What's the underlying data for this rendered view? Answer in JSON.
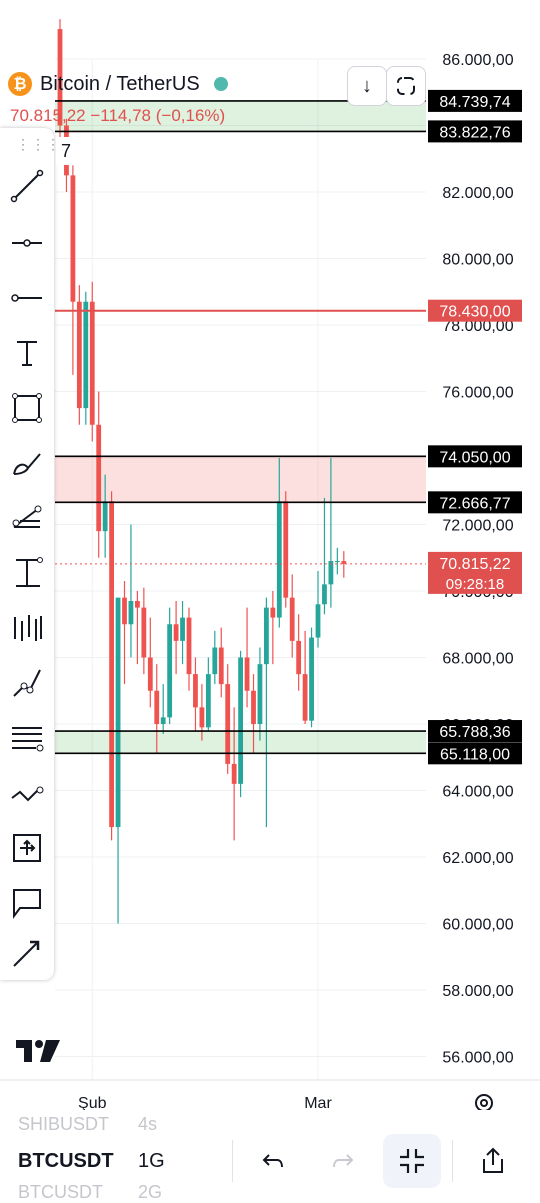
{
  "header": {
    "symbol_name": "Bitcoin / TetherUS",
    "price_line": "70.815,22  −114,78 (−0,16%)",
    "tool_count": "7"
  },
  "colors": {
    "up": "#26a69a",
    "down": "#ef5350",
    "label_dark": "#000000",
    "label_red": "#e0504f"
  },
  "chart_data": {
    "type": "candlestick",
    "ylim": [
      55000,
      87000
    ],
    "y_ticks": [
      {
        "value": 86000,
        "label": "86.000,00"
      },
      {
        "value": 84000,
        "label": "84.000,00"
      },
      {
        "value": 82000,
        "label": "82.000,00"
      },
      {
        "value": 80000,
        "label": "80.000,00"
      },
      {
        "value": 78000,
        "label": "78.000,00"
      },
      {
        "value": 76000,
        "label": "76.000,00"
      },
      {
        "value": 74000,
        "label": "74.000,00"
      },
      {
        "value": 72000,
        "label": "72.000,00"
      },
      {
        "value": 70000,
        "label": "70.000,00"
      },
      {
        "value": 68000,
        "label": "68.000,00"
      },
      {
        "value": 66000,
        "label": "66.000,00"
      },
      {
        "value": 64000,
        "label": "64.000,00"
      },
      {
        "value": 62000,
        "label": "62.000,00"
      },
      {
        "value": 60000,
        "label": "60.000,00"
      },
      {
        "value": 58000,
        "label": "58.000,00"
      },
      {
        "value": 56000,
        "label": "56.000,00"
      }
    ],
    "x_labels": [
      {
        "index": 5,
        "label": "Şub"
      },
      {
        "index": 40,
        "label": "Mar"
      }
    ],
    "candles": [
      [
        86900,
        87200,
        83600,
        84000
      ],
      [
        84000,
        84200,
        82000,
        82500
      ],
      [
        82500,
        82800,
        76500,
        78700
      ],
      [
        78700,
        79200,
        75000,
        75500
      ],
      [
        75500,
        79000,
        75000,
        78700
      ],
      [
        78700,
        79300,
        74500,
        75000
      ],
      [
        75000,
        76000,
        71000,
        71800
      ],
      [
        71800,
        73500,
        71000,
        72700
      ],
      [
        72700,
        73000,
        62500,
        62900
      ],
      [
        62900,
        69800,
        60000,
        69800
      ],
      [
        69800,
        70300,
        67200,
        69000
      ],
      [
        69000,
        72000,
        68000,
        69700
      ],
      [
        69700,
        70000,
        67800,
        69500
      ],
      [
        69500,
        70100,
        67500,
        68000
      ],
      [
        68000,
        69200,
        66500,
        67000
      ],
      [
        67000,
        67800,
        65100,
        66000
      ],
      [
        66000,
        67200,
        65700,
        66200
      ],
      [
        66200,
        69500,
        66000,
        69000
      ],
      [
        69000,
        69700,
        67500,
        68500
      ],
      [
        68500,
        69700,
        67800,
        69200
      ],
      [
        69200,
        69500,
        67000,
        67500
      ],
      [
        67500,
        68000,
        65800,
        66500
      ],
      [
        66500,
        67200,
        65500,
        65900
      ],
      [
        65900,
        68000,
        65800,
        67500
      ],
      [
        67500,
        68800,
        67200,
        68300
      ],
      [
        68300,
        68900,
        66800,
        67200
      ],
      [
        67200,
        67800,
        64500,
        64800
      ],
      [
        64800,
        66500,
        62500,
        64200
      ],
      [
        64200,
        68200,
        63800,
        68000
      ],
      [
        68000,
        69500,
        66500,
        67000
      ],
      [
        67000,
        67500,
        65100,
        66000
      ],
      [
        66000,
        68300,
        65500,
        67800
      ],
      [
        67800,
        69800,
        62900,
        69500
      ],
      [
        69500,
        70000,
        67800,
        69200
      ],
      [
        69200,
        74000,
        68900,
        72700
      ],
      [
        72700,
        73000,
        69500,
        69800
      ],
      [
        69800,
        70500,
        68000,
        68500
      ],
      [
        68500,
        69300,
        67000,
        67500
      ],
      [
        67500,
        68800,
        66000,
        66100
      ],
      [
        66100,
        68900,
        65900,
        68600
      ],
      [
        68600,
        70600,
        68300,
        69600
      ],
      [
        69600,
        72800,
        69300,
        70200
      ],
      [
        70200,
        74000,
        69500,
        70900
      ],
      [
        70900,
        71300,
        70500,
        70900
      ],
      [
        70900,
        71200,
        70400,
        70815
      ]
    ],
    "zones": [
      {
        "from": 83822.76,
        "to": 84739.74,
        "kind": "support"
      },
      {
        "from": 72666.77,
        "to": 74050.0,
        "kind": "resistance"
      },
      {
        "from": 65118.0,
        "to": 65788.36,
        "kind": "support"
      }
    ],
    "lines": [
      {
        "value": 84739.74,
        "label": "84.739,74",
        "color": "#000000"
      },
      {
        "value": 83822.76,
        "label": "83.822,76",
        "color": "#000000"
      },
      {
        "value": 78430.0,
        "label": "78.430,00",
        "color": "#e0504f"
      },
      {
        "value": 74050.0,
        "label": "74.050,00",
        "color": "#000000"
      },
      {
        "value": 72666.77,
        "label": "72.666,77",
        "color": "#000000"
      },
      {
        "value": 65788.36,
        "label": "65.788,36",
        "color": "#000000"
      },
      {
        "value": 65118.0,
        "label": "65.118,00",
        "color": "#000000"
      }
    ],
    "last_price": {
      "value": 70815.22,
      "label": "70.815,22",
      "countdown": "09:28:18"
    }
  },
  "bottom": {
    "prev_symbol": "SHIBUSDT",
    "prev_tf": "4s",
    "symbol": "BTCUSDT",
    "timeframe": "1G",
    "next_symbol": "BTCUSDT",
    "next_tf": "2G"
  }
}
